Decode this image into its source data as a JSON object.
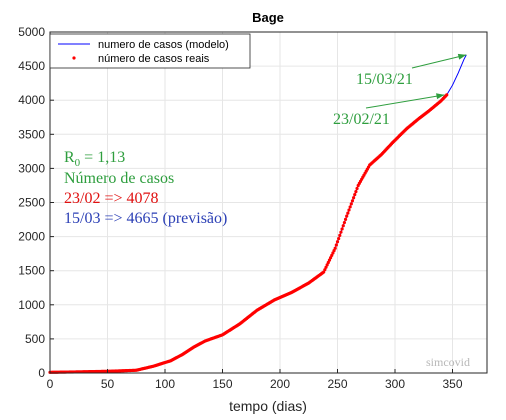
{
  "chart_data": {
    "type": "line",
    "title": "Bage",
    "xlabel": "tempo (dias)",
    "ylabel": "",
    "xlim": [
      0,
      380
    ],
    "ylim": [
      0,
      5000
    ],
    "xticks": [
      "0",
      "50",
      "100",
      "150",
      "200",
      "250",
      "300",
      "350"
    ],
    "yticks": [
      "0",
      "500",
      "1000",
      "1500",
      "2000",
      "2500",
      "3000",
      "3500",
      "4000",
      "4500",
      "5000"
    ],
    "grid": true,
    "legend_position": "top-left",
    "series": [
      {
        "name": "numero de casos (modelo)",
        "style": "line",
        "color": "#0000ff",
        "x": [
          0,
          20,
          50,
          75,
          90,
          105,
          115,
          125,
          135,
          150,
          165,
          180,
          195,
          210,
          225,
          238,
          248,
          258,
          268,
          278,
          288,
          298,
          310,
          320,
          330,
          340,
          345,
          350,
          355,
          360,
          362
        ],
        "y": [
          10,
          15,
          25,
          40,
          100,
          180,
          270,
          380,
          470,
          560,
          720,
          920,
          1070,
          1180,
          1320,
          1480,
          1830,
          2300,
          2750,
          3050,
          3200,
          3380,
          3580,
          3720,
          3850,
          3990,
          4078,
          4220,
          4400,
          4600,
          4665
        ]
      },
      {
        "name": "número de casos reais",
        "style": "dots",
        "color": "#ff0000",
        "x": [
          0,
          20,
          50,
          75,
          90,
          105,
          115,
          125,
          135,
          150,
          165,
          180,
          195,
          210,
          225,
          238,
          248,
          258,
          268,
          278,
          288,
          298,
          310,
          320,
          330,
          340,
          345
        ],
        "y": [
          10,
          15,
          25,
          40,
          100,
          180,
          270,
          380,
          470,
          560,
          720,
          920,
          1070,
          1180,
          1320,
          1480,
          1830,
          2300,
          2750,
          3050,
          3200,
          3380,
          3580,
          3720,
          3850,
          3990,
          4078
        ]
      }
    ],
    "annotations": {
      "r0_prefix": "R",
      "r0_sub": "0",
      "r0_value": " = 1,13",
      "cases_label": "Número de casos",
      "real_line": "23/02 => 4078",
      "forecast_line": "15/03 => 4665 (previsão)",
      "date_real": "23/02/21",
      "date_forecast": "15/03/21",
      "arrow_real_target": [
        343,
        4078
      ],
      "arrow_forecast_target": [
        362,
        4665
      ],
      "watermark": "simcovid"
    },
    "colors": {
      "annotation_green": "#2e9e3e",
      "annotation_red": "#e01010",
      "annotation_blue": "#2b3fb5",
      "grid": "#e6e6e6",
      "axis": "#262626"
    }
  }
}
